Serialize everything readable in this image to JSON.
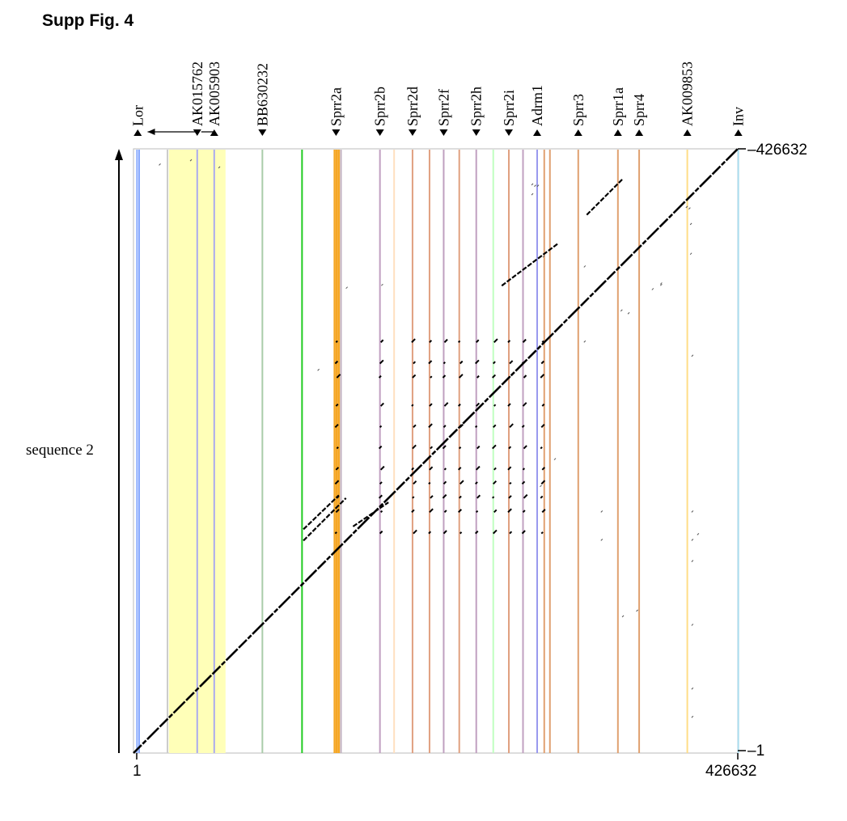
{
  "figure": {
    "title": "Supp Fig.  4"
  },
  "chart_data": {
    "type": "scatter",
    "title": "",
    "xlabel": "",
    "ylabel": "sequence 2",
    "xlim": [
      1,
      426632
    ],
    "ylim": [
      1,
      426632
    ],
    "x_ticks": {
      "start": "1",
      "end": "426632"
    },
    "y_ticks": {
      "start": "1",
      "end": "426632"
    },
    "highlight_region": {
      "x_start": 25000,
      "x_end": 65000,
      "color": "#ffffb8"
    },
    "genes": [
      {
        "name": "Lor",
        "x": 3000,
        "strand": "+",
        "color": "#88aaff"
      },
      {
        "name": "AK015762",
        "x": 45000,
        "strand": "-",
        "color": "#aaaaee"
      },
      {
        "name": "AK005903",
        "x": 57000,
        "strand": "+",
        "color": "#aaaaee"
      },
      {
        "name": "BB630232",
        "x": 91000,
        "strand": "-",
        "color": "#aaccaa"
      },
      {
        "name": "Sprr2a",
        "x": 143000,
        "strand": "-",
        "color": "#f5a623"
      },
      {
        "name": "Sprr2b",
        "x": 174000,
        "strand": "-",
        "color": "#c0a0c0"
      },
      {
        "name": "Sprr2d",
        "x": 197000,
        "strand": "-",
        "color": "#e0a080"
      },
      {
        "name": "Sprr2f",
        "x": 219000,
        "strand": "-",
        "color": "#c0a0c0"
      },
      {
        "name": "Sprr2h",
        "x": 242000,
        "strand": "-",
        "color": "#c0a0c0"
      },
      {
        "name": "Sprr2i",
        "x": 265000,
        "strand": "-",
        "color": "#c0a0c0"
      },
      {
        "name": "Adrm1",
        "x": 285000,
        "strand": "+",
        "color": "#9999ee"
      },
      {
        "name": "Sprr3",
        "x": 314000,
        "strand": "+",
        "color": "#e0a070"
      },
      {
        "name": "Sprr1a",
        "x": 342000,
        "strand": "+",
        "color": "#e0a070"
      },
      {
        "name": "Sprr4",
        "x": 357000,
        "strand": "+",
        "color": "#e0a070"
      },
      {
        "name": "AK009853",
        "x": 391000,
        "strand": "+",
        "color": "#ffdd88"
      },
      {
        "name": "Inv",
        "x": 427000,
        "strand": "+",
        "color": "#aaddee"
      }
    ],
    "extra_bands": [
      {
        "x": 2500,
        "color": "#88aaff"
      },
      {
        "x": 4000,
        "color": "#88aaff"
      },
      {
        "x": 24000,
        "color": "#cccccc"
      },
      {
        "x": 45000,
        "color": "#aaaaee"
      },
      {
        "x": 57000,
        "color": "#aaaaee"
      },
      {
        "x": 91000,
        "color": "#aaccaa"
      },
      {
        "x": 119000,
        "color": "#22cc22"
      },
      {
        "x": 142000,
        "color": "#f5a623"
      },
      {
        "x": 143500,
        "color": "#f5a623"
      },
      {
        "x": 145000,
        "color": "#f5a623"
      },
      {
        "x": 146500,
        "color": "#c0b0c0"
      },
      {
        "x": 174000,
        "color": "#c0a0c0"
      },
      {
        "x": 184000,
        "color": "#ffe0c0"
      },
      {
        "x": 197000,
        "color": "#e0a080"
      },
      {
        "x": 209000,
        "color": "#e0a080"
      },
      {
        "x": 219000,
        "color": "#c0a0c0"
      },
      {
        "x": 230000,
        "color": "#e0a080"
      },
      {
        "x": 242000,
        "color": "#c0a0c0"
      },
      {
        "x": 254000,
        "color": "#c0ffc0"
      },
      {
        "x": 265000,
        "color": "#e0a080"
      },
      {
        "x": 275000,
        "color": "#c0a0c0"
      },
      {
        "x": 285000,
        "color": "#9999ee"
      },
      {
        "x": 290000,
        "color": "#e0a070"
      },
      {
        "x": 294000,
        "color": "#e0a070"
      },
      {
        "x": 314000,
        "color": "#e0a070"
      },
      {
        "x": 342000,
        "color": "#e0a070"
      },
      {
        "x": 357000,
        "color": "#e0a070"
      },
      {
        "x": 391000,
        "color": "#ffdd88"
      },
      {
        "x": 427000,
        "color": "#aaddee"
      }
    ],
    "series": [
      {
        "type": "diagonal",
        "points": [
          [
            1,
            1
          ],
          [
            426632,
            426632
          ]
        ]
      },
      {
        "type": "repeat-grid",
        "x": [
          143000,
          174000,
          197000,
          209000,
          219000,
          230000,
          242000,
          254000,
          265000,
          275000,
          288000
        ],
        "y": [
          155000,
          170000,
          180000,
          190000,
          200000,
          215000,
          230000,
          245000,
          265000,
          275000,
          290000
        ]
      },
      {
        "type": "segments",
        "points": [
          [
            120000,
            150000,
            150000,
            180000
          ],
          [
            120000,
            158000,
            145000,
            182000
          ],
          [
            155000,
            160000,
            180000,
            177000
          ],
          [
            260000,
            330000,
            300000,
            360000
          ],
          [
            320000,
            380000,
            345000,
            405000
          ]
        ]
      },
      {
        "type": "sparse",
        "points": [
          [
            18000,
            415000
          ],
          [
            40000,
            418000
          ],
          [
            60000,
            413000
          ],
          [
            130000,
            270000
          ],
          [
            150000,
            328000
          ],
          [
            175000,
            330000
          ],
          [
            281000,
            401000
          ],
          [
            281000,
            394000
          ],
          [
            289000,
            350000
          ],
          [
            318000,
            343000
          ],
          [
            318000,
            290000
          ],
          [
            344000,
            312000
          ],
          [
            349000,
            310000
          ],
          [
            366000,
            327000
          ],
          [
            372000,
            331000
          ],
          [
            372000,
            330000
          ],
          [
            390000,
            385000
          ],
          [
            392000,
            384000
          ],
          [
            393000,
            373000
          ],
          [
            393000,
            352000
          ],
          [
            394000,
            280000
          ],
          [
            394000,
            170000
          ],
          [
            394000,
            150000
          ],
          [
            394000,
            135000
          ],
          [
            394000,
            90000
          ],
          [
            394000,
            45000
          ],
          [
            394000,
            25000
          ],
          [
            355000,
            100000
          ],
          [
            330000,
            170000
          ],
          [
            330000,
            150000
          ],
          [
            297000,
            207000
          ],
          [
            287000,
            188000
          ],
          [
            283000,
            400000
          ],
          [
            285000,
            400000
          ],
          [
            398000,
            154000
          ],
          [
            345000,
            96000
          ]
        ]
      }
    ]
  }
}
